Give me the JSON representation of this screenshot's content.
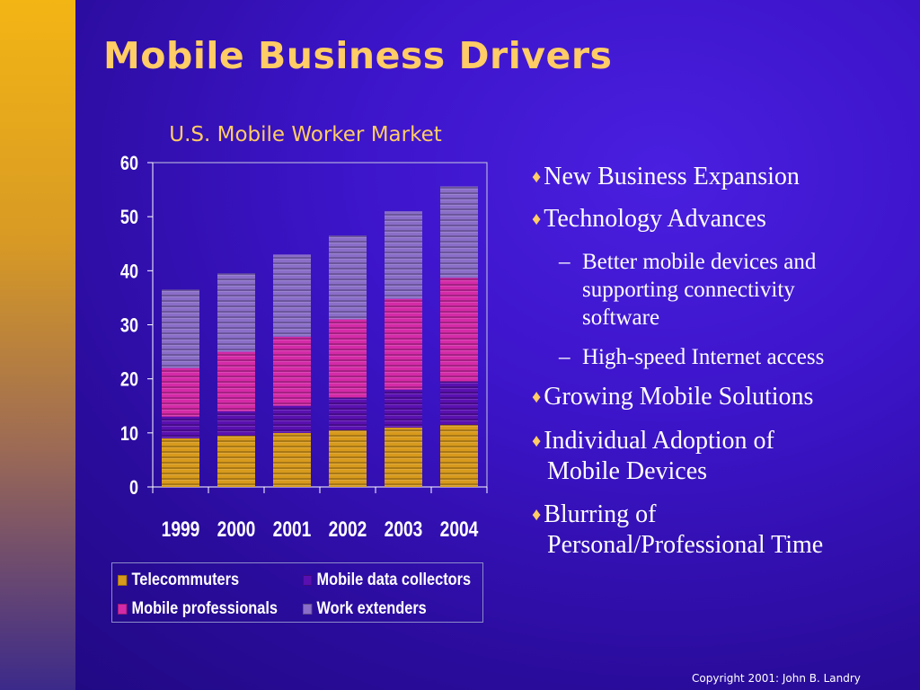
{
  "slide": {
    "title": "Mobile Business Drivers",
    "copyright": "Copyright 2001: John B. Landry"
  },
  "bullets": [
    {
      "level": 1,
      "lines": [
        "New Business Expansion"
      ]
    },
    {
      "level": 1,
      "lines": [
        "Technology Advances"
      ]
    },
    {
      "level": 2,
      "lines": [
        "Better mobile devices and",
        "supporting connectivity",
        "software"
      ]
    },
    {
      "level": 2,
      "lines": [
        "High-speed Internet access"
      ]
    },
    {
      "level": 1,
      "lines": [
        "Growing Mobile Solutions"
      ]
    },
    {
      "level": 1,
      "lines": [
        "Individual Adoption of",
        "Mobile Devices"
      ]
    },
    {
      "level": 1,
      "lines": [
        "Blurring of",
        "Personal/Professional Time"
      ]
    }
  ],
  "colors": {
    "title": "#ffcc66",
    "bullet_marker": "#ffcc66",
    "text": "#ffffff"
  },
  "chart_data": {
    "type": "bar",
    "stacked": true,
    "title": "U.S. Mobile Worker Market",
    "categories": [
      "1999",
      "2000",
      "2001",
      "2002",
      "2003",
      "2004"
    ],
    "ylim": [
      0,
      60
    ],
    "yticks": [
      "0",
      "10",
      "20",
      "30",
      "40",
      "50",
      "60"
    ],
    "grid": false,
    "legend_position": "bottom",
    "series": [
      {
        "name": "Telecommuters",
        "color": "#d89a1c",
        "values": [
          9,
          9.5,
          10,
          10.5,
          11,
          11.5
        ]
      },
      {
        "name": "Mobile data collectors",
        "color": "#5a10b0",
        "values": [
          4,
          4.5,
          5,
          6,
          7,
          8
        ]
      },
      {
        "name": "Mobile professionals",
        "color": "#d42aa8",
        "values": [
          9,
          11,
          12.8,
          14.5,
          16.8,
          19.2
        ]
      },
      {
        "name": "Work extenders",
        "color": "#8a6ec8",
        "values": [
          14.5,
          14.5,
          15.2,
          15.5,
          16.2,
          16.9
        ]
      }
    ]
  }
}
